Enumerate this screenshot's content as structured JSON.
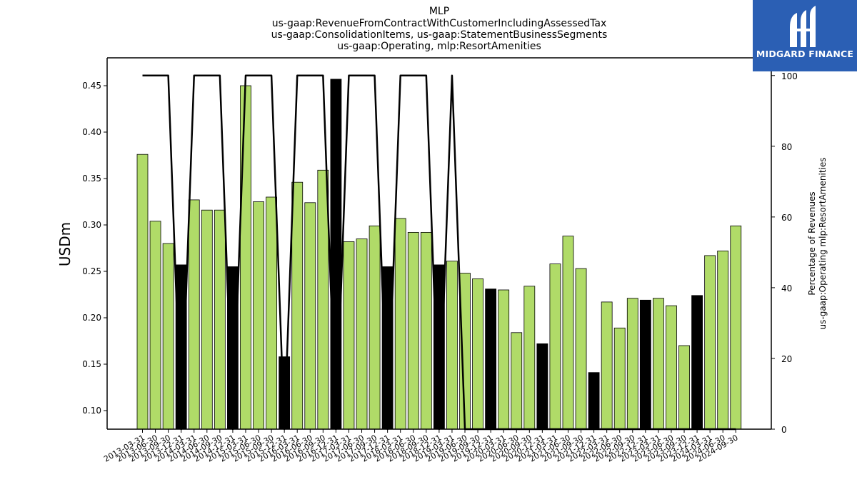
{
  "chart_data": {
    "type": "bar",
    "title_lines": [
      "MLP",
      "us-gaap:RevenueFromContractWithCustomerIncludingAssessedTax",
      "us-gaap:ConsolidationItems, us-gaap:StatementBusinessSegments",
      "us-gaap:Operating, mlp:ResortAmenities"
    ],
    "ylabel": "USDm",
    "ylabel_right": [
      "Percentage of Revenues",
      "us-gaap:Operating mlp:ResortAmenities"
    ],
    "ylim": [
      0.08,
      0.48
    ],
    "ylim_right": [
      0,
      105
    ],
    "yticks": [
      "0.10",
      "0.15",
      "0.20",
      "0.25",
      "0.30",
      "0.35",
      "0.40",
      "0.45"
    ],
    "yticks_right": [
      "0",
      "20",
      "40",
      "60",
      "80",
      "100"
    ],
    "categories": [
      "2013-03-31",
      "2013-06-30",
      "2013-09-30",
      "2013-12-31",
      "2014-03-31",
      "2014-06-30",
      "2014-09-30",
      "2014-12-31",
      "2015-03-31",
      "2015-06-30",
      "2015-09-30",
      "2015-12-31",
      "2016-03-31",
      "2016-06-30",
      "2016-09-30",
      "2016-12-31",
      "2017-03-31",
      "2017-06-30",
      "2017-09-30",
      "2017-12-31",
      "2018-03-31",
      "2018-06-30",
      "2018-09-30",
      "2018-12-31",
      "2019-03-31",
      "2019-06-30",
      "2019-09-30",
      "2019-12-31",
      "2020-03-31",
      "2020-06-30",
      "2020-09-30",
      "2020-12-31",
      "2021-03-31",
      "2021-06-30",
      "2021-09-30",
      "2021-12-31",
      "2022-03-31",
      "2022-06-30",
      "2022-09-30",
      "2022-12-31",
      "2023-03-31",
      "2023-06-30",
      "2023-09-30",
      "2023-12-31",
      "2024-03-31",
      "2024-06-30",
      "2024-09-30"
    ],
    "values": [
      0.376,
      0.304,
      0.28,
      0.257,
      0.327,
      0.316,
      0.316,
      0.255,
      0.45,
      0.325,
      0.33,
      0.158,
      0.346,
      0.324,
      0.359,
      0.457,
      0.282,
      0.285,
      0.299,
      0.255,
      0.307,
      0.292,
      0.292,
      0.257,
      0.261,
      0.248,
      0.242,
      0.231,
      0.23,
      0.184,
      0.234,
      0.172,
      0.258,
      0.288,
      0.253,
      0.141,
      0.217,
      0.189,
      0.221,
      0.219,
      0.221,
      0.213,
      0.17,
      0.224,
      0.267,
      0.272,
      0.299
    ],
    "bar_colors_by_quarter_end": {
      "03-31": "#b0db68",
      "06-30": "#b0db68",
      "09-30": "#b0db68",
      "12-31": "#000000"
    },
    "line_series": {
      "axis": "right",
      "color": "#000000",
      "values": [
        100,
        100,
        100,
        0,
        100,
        100,
        100,
        0,
        100,
        100,
        100,
        0,
        100,
        100,
        100,
        0,
        100,
        100,
        100,
        0,
        100,
        100,
        100,
        0,
        100,
        0,
        0,
        0,
        0,
        0,
        0,
        0,
        0,
        0,
        0,
        0,
        0,
        0,
        0,
        0,
        0,
        0,
        0,
        0,
        0,
        0,
        0
      ]
    },
    "grid": false,
    "legend": "none"
  },
  "logo": {
    "text": "MIDGARD FINANCE",
    "bg_color": "#2b5fb4",
    "icon": "midgard-logo-icon"
  }
}
